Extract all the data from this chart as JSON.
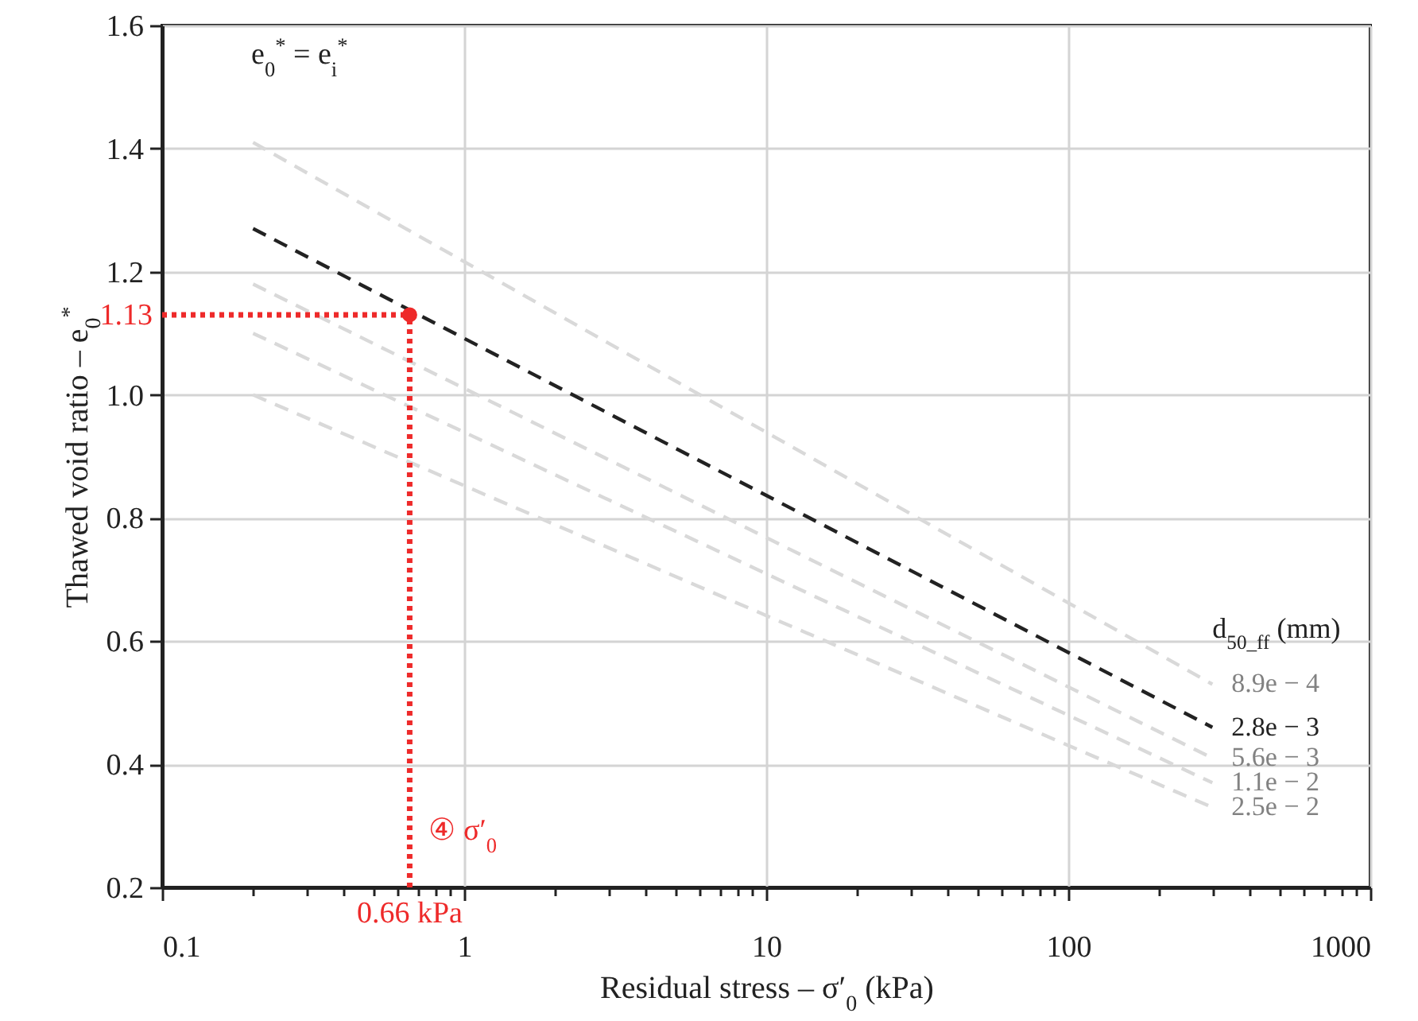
{
  "chart_data": {
    "type": "line",
    "xlabel": "Residual stress – σ′$_{0}$ (kPa)",
    "ylabel": "Thawed void ratio – e$_{0}$$^{*}$",
    "legend_title": "d$_{50_ff}$ (mm)",
    "log": "x",
    "grid": true,
    "marker": "none",
    "line_style": "dashed",
    "xlim": [
      0.1,
      1000
    ],
    "ylim": [
      0.2,
      1.6
    ],
    "xticks": [
      0.1,
      {
        "value": 0.2,
        "label": null
      },
      {
        "value": 0.3,
        "label": null
      },
      {
        "value": 0.4,
        "label": null
      },
      {
        "value": 0.5,
        "label": null
      },
      {
        "value": 0.6,
        "label": null
      },
      {
        "value": 0.7,
        "label": null
      },
      {
        "value": 0.8,
        "label": null
      },
      {
        "value": 0.9,
        "label": null
      },
      1,
      {
        "value": 2,
        "label": null
      },
      {
        "value": 3,
        "label": null
      },
      {
        "value": 4,
        "label": null
      },
      {
        "value": 5,
        "label": null
      },
      {
        "value": 6,
        "label": null
      },
      {
        "value": 7,
        "label": null
      },
      {
        "value": 8,
        "label": null
      },
      {
        "value": 9,
        "label": null
      },
      10,
      {
        "value": 20,
        "label": null
      },
      {
        "value": 30,
        "label": null
      },
      {
        "value": 40,
        "label": null
      },
      {
        "value": 50,
        "label": null
      },
      {
        "value": 60,
        "label": null
      },
      {
        "value": 70,
        "label": null
      },
      {
        "value": 80,
        "label": null
      },
      {
        "value": 90,
        "label": null
      },
      100,
      {
        "value": 200,
        "label": null
      },
      {
        "value": 300,
        "label": null
      },
      {
        "value": 400,
        "label": null
      },
      {
        "value": 500,
        "label": null
      },
      {
        "value": 600,
        "label": null
      },
      {
        "value": 700,
        "label": null
      },
      {
        "value": 800,
        "label": null
      },
      {
        "value": 900,
        "label": null
      },
      1000
    ],
    "yticks": [
      0.2,
      0.4,
      0.6,
      0.8,
      {
        "value": 1,
        "label": "1.0"
      },
      1.2,
      1.4,
      1.6
    ],
    "series": [
      {
        "name": "8.9e − 4",
        "color": "#d9d9d9",
        "x": [
          0.2,
          300
        ],
        "values": [
          1.41,
          0.53
        ]
      },
      {
        "name": "2.8e − 3",
        "color": "#222222",
        "x": [
          0.2,
          300
        ],
        "values": [
          1.27,
          0.46
        ]
      },
      {
        "name": "5.6e − 3",
        "color": "#d9d9d9",
        "x": [
          0.2,
          300
        ],
        "values": [
          1.18,
          0.41
        ]
      },
      {
        "name": "1.1e − 2",
        "color": "#d9d9d9",
        "x": [
          0.2,
          300
        ],
        "values": [
          1.1,
          0.37
        ]
      },
      {
        "name": "2.5e − 2",
        "color": "#d9d9d9",
        "x": [
          0.2,
          300
        ],
        "values": [
          1.0,
          0.33
        ]
      },
      {
        "type": "scatter",
        "marker": "circle",
        "color": "#ee2a2a",
        "x": [
          0.66
        ],
        "values": [
          1.13
        ]
      }
    ],
    "ref_lines": [
      {
        "axis": "y",
        "value": 1.13,
        "label": "1.13",
        "color": "#ee2a2a",
        "line_style": "dotted"
      },
      {
        "axis": "x",
        "value": 0.66,
        "label": "0.66 kPa",
        "color": "#ee2a2a",
        "line_style": "dotted"
      }
    ],
    "annotations": [
      "e$_{0}$$^{*}$ = e$_{i}$$^{*}$",
      "④ σ′$_{0}$"
    ]
  }
}
